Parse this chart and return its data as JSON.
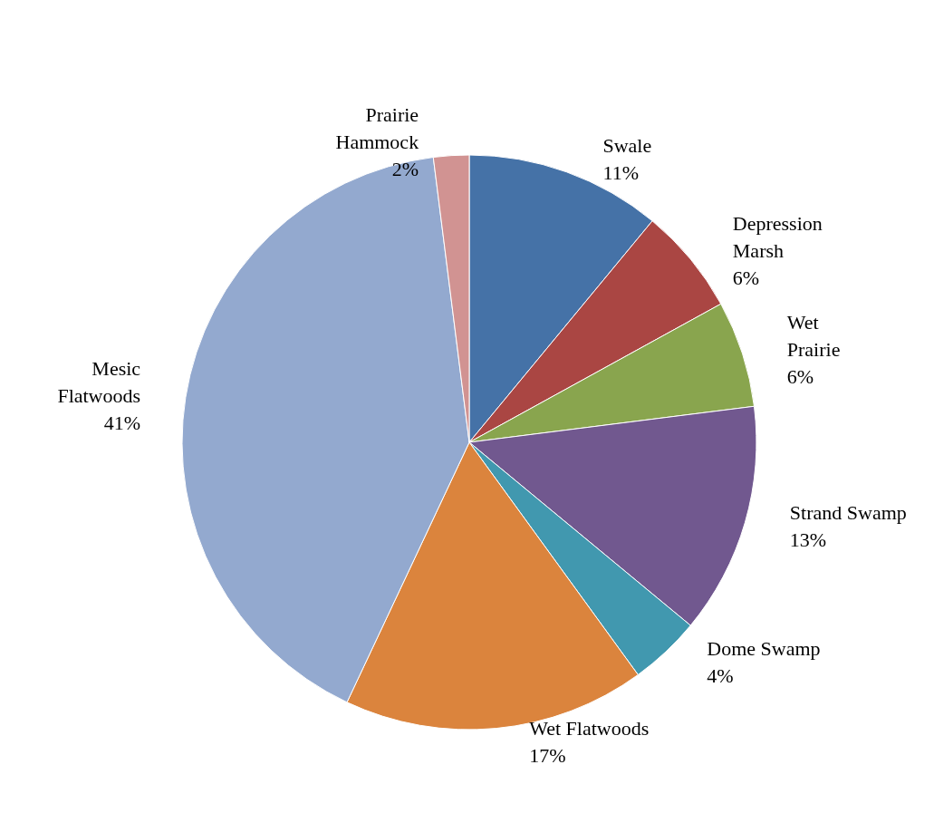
{
  "chart_data": {
    "type": "pie",
    "categories": [
      "Swale",
      "Depression\nMarsh",
      "Wet\nPrairie",
      "Strand Swamp",
      "Dome Swamp",
      "Wet Flatwoods",
      "Mesic\nFlatwoods",
      "Prairie\nHammock"
    ],
    "values": [
      11,
      6,
      6,
      13,
      4,
      17,
      41,
      2
    ],
    "value_labels": [
      "11%",
      "6%",
      "6%",
      "13%",
      "4%",
      "17%",
      "41%",
      "2%"
    ],
    "colors": [
      "#4572a7",
      "#aa4643",
      "#89a54e",
      "#71588f",
      "#4198af",
      "#db843d",
      "#93a9cf",
      "#d19392"
    ],
    "legend": false
  }
}
